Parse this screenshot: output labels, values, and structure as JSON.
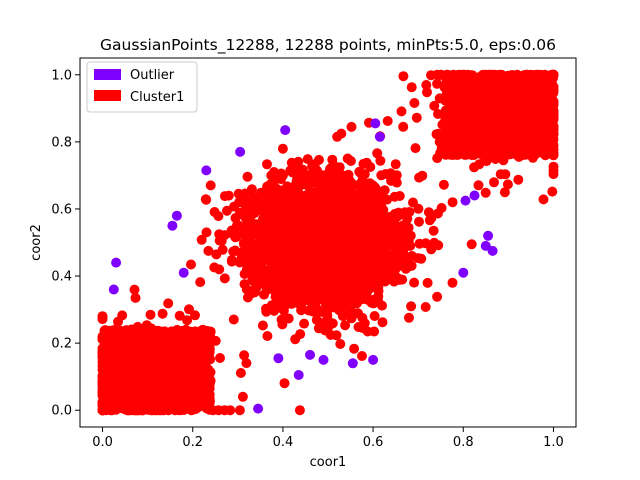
{
  "chart_data": {
    "type": "scatter",
    "title": "GaussianPoints_12288, 12288 points, minPts:5.0, eps:0.06",
    "xlabel": "coor1",
    "ylabel": "coor2",
    "xlim": [
      -0.05,
      1.05
    ],
    "ylim": [
      -0.05,
      1.05
    ],
    "xticks": [
      0.0,
      0.2,
      0.4,
      0.6,
      0.8,
      1.0
    ],
    "yticks": [
      0.0,
      0.2,
      0.4,
      0.6,
      0.8,
      1.0
    ],
    "xtick_labels": [
      "0.0",
      "0.2",
      "0.4",
      "0.6",
      "0.8",
      "1.0"
    ],
    "ytick_labels": [
      "0.0",
      "0.2",
      "0.4",
      "0.6",
      "0.8",
      "1.0"
    ],
    "grid": false,
    "legend_placement": "top-left",
    "series": [
      {
        "name": "Outlier",
        "color": "#8000ff",
        "points": [
          [
            0.405,
            0.835
          ],
          [
            0.605,
            0.855
          ],
          [
            0.615,
            0.815
          ],
          [
            0.23,
            0.715
          ],
          [
            0.305,
            0.77
          ],
          [
            0.165,
            0.58
          ],
          [
            0.155,
            0.55
          ],
          [
            0.03,
            0.44
          ],
          [
            0.025,
            0.36
          ],
          [
            0.18,
            0.41
          ],
          [
            0.8,
            0.41
          ],
          [
            0.805,
            0.625
          ],
          [
            0.825,
            0.64
          ],
          [
            0.855,
            0.52
          ],
          [
            0.85,
            0.49
          ],
          [
            0.865,
            0.475
          ],
          [
            0.39,
            0.155
          ],
          [
            0.46,
            0.165
          ],
          [
            0.49,
            0.15
          ],
          [
            0.555,
            0.14
          ],
          [
            0.6,
            0.15
          ],
          [
            0.435,
            0.105
          ],
          [
            0.345,
            0.005
          ]
        ]
      },
      {
        "name": "Cluster1",
        "color": "#ff0000",
        "clusters": [
          {
            "center": [
              0.49,
              0.5
            ],
            "spread": [
              0.085,
              0.095
            ],
            "count": 2600
          },
          {
            "center": [
              0.88,
              0.9
            ],
            "box": [
              0.76,
              1.0,
              0.76,
              1.0
            ],
            "count": 1800
          },
          {
            "center": [
              0.1,
              0.1
            ],
            "box": [
              0.0,
              0.24,
              0.0,
              0.24
            ],
            "count": 1800
          }
        ]
      }
    ]
  }
}
